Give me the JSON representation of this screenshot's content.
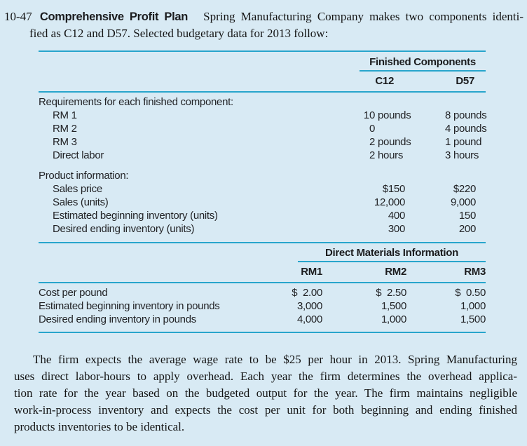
{
  "colors": {
    "background": "#d8eaf4",
    "rule": "#28a5cc",
    "text": "#222326"
  },
  "problem": {
    "number": "10-47",
    "title": "Comprehensive Profit Plan",
    "intro_line1": "Spring Manufacturing Company makes two components identi-",
    "intro_line2": "fied as C12 and D57. Selected budgetary data for 2013 follow:"
  },
  "table1": {
    "group_header": "Finished Components",
    "columns": [
      "C12",
      "D57"
    ],
    "sections": [
      {
        "heading": "Requirements for each finished component:",
        "rows": [
          {
            "label": "RM 1",
            "c12_num": "10",
            "c12_unit": "pounds",
            "d57_num": "8",
            "d57_unit": "pounds"
          },
          {
            "label": "RM 2",
            "c12_num": "0",
            "c12_unit": "",
            "d57_num": "4",
            "d57_unit": "pounds"
          },
          {
            "label": "RM 3",
            "c12_num": "2",
            "c12_unit": "pounds",
            "d57_num": "1",
            "d57_unit": "pound"
          },
          {
            "label": "Direct labor",
            "c12_num": "2",
            "c12_unit": "hours",
            "d57_num": "3",
            "d57_unit": "hours"
          }
        ]
      },
      {
        "heading": "Product information:",
        "rows": [
          {
            "label": "Sales price",
            "c12": "$150",
            "d57": "$220"
          },
          {
            "label": "Sales (units)",
            "c12": "12,000",
            "d57": "9,000"
          },
          {
            "label": "Estimated beginning inventory (units)",
            "c12": "400",
            "d57": "150"
          },
          {
            "label": "Desired ending inventory (units)",
            "c12": "300",
            "d57": "200"
          }
        ]
      }
    ]
  },
  "table2": {
    "group_header": "Direct Materials Information",
    "columns": [
      "RM1",
      "RM2",
      "RM3"
    ],
    "rows": [
      {
        "label": "Cost per pound",
        "rm1": "$  2.00",
        "rm2": "$  2.50",
        "rm3": "$  0.50"
      },
      {
        "label": "Estimated beginning inventory in pounds",
        "rm1": "3,000",
        "rm2": "1,500",
        "rm3": "1,000"
      },
      {
        "label": "Desired ending inventory in pounds",
        "rm1": "4,000",
        "rm2": "1,000",
        "rm3": "1,500"
      }
    ]
  },
  "paragraph": {
    "lines": [
      "The firm expects the average wage rate to be $25 per hour in 2013. Spring Manufacturing",
      "uses direct labor-hours to apply overhead. Each year the firm determines the overhead applica-",
      "tion rate for the year based on the budgeted output for the year. The firm maintains negligible",
      "work-in-process inventory and expects the cost per unit for both beginning and ending finished",
      "products inventories to be identical."
    ]
  }
}
